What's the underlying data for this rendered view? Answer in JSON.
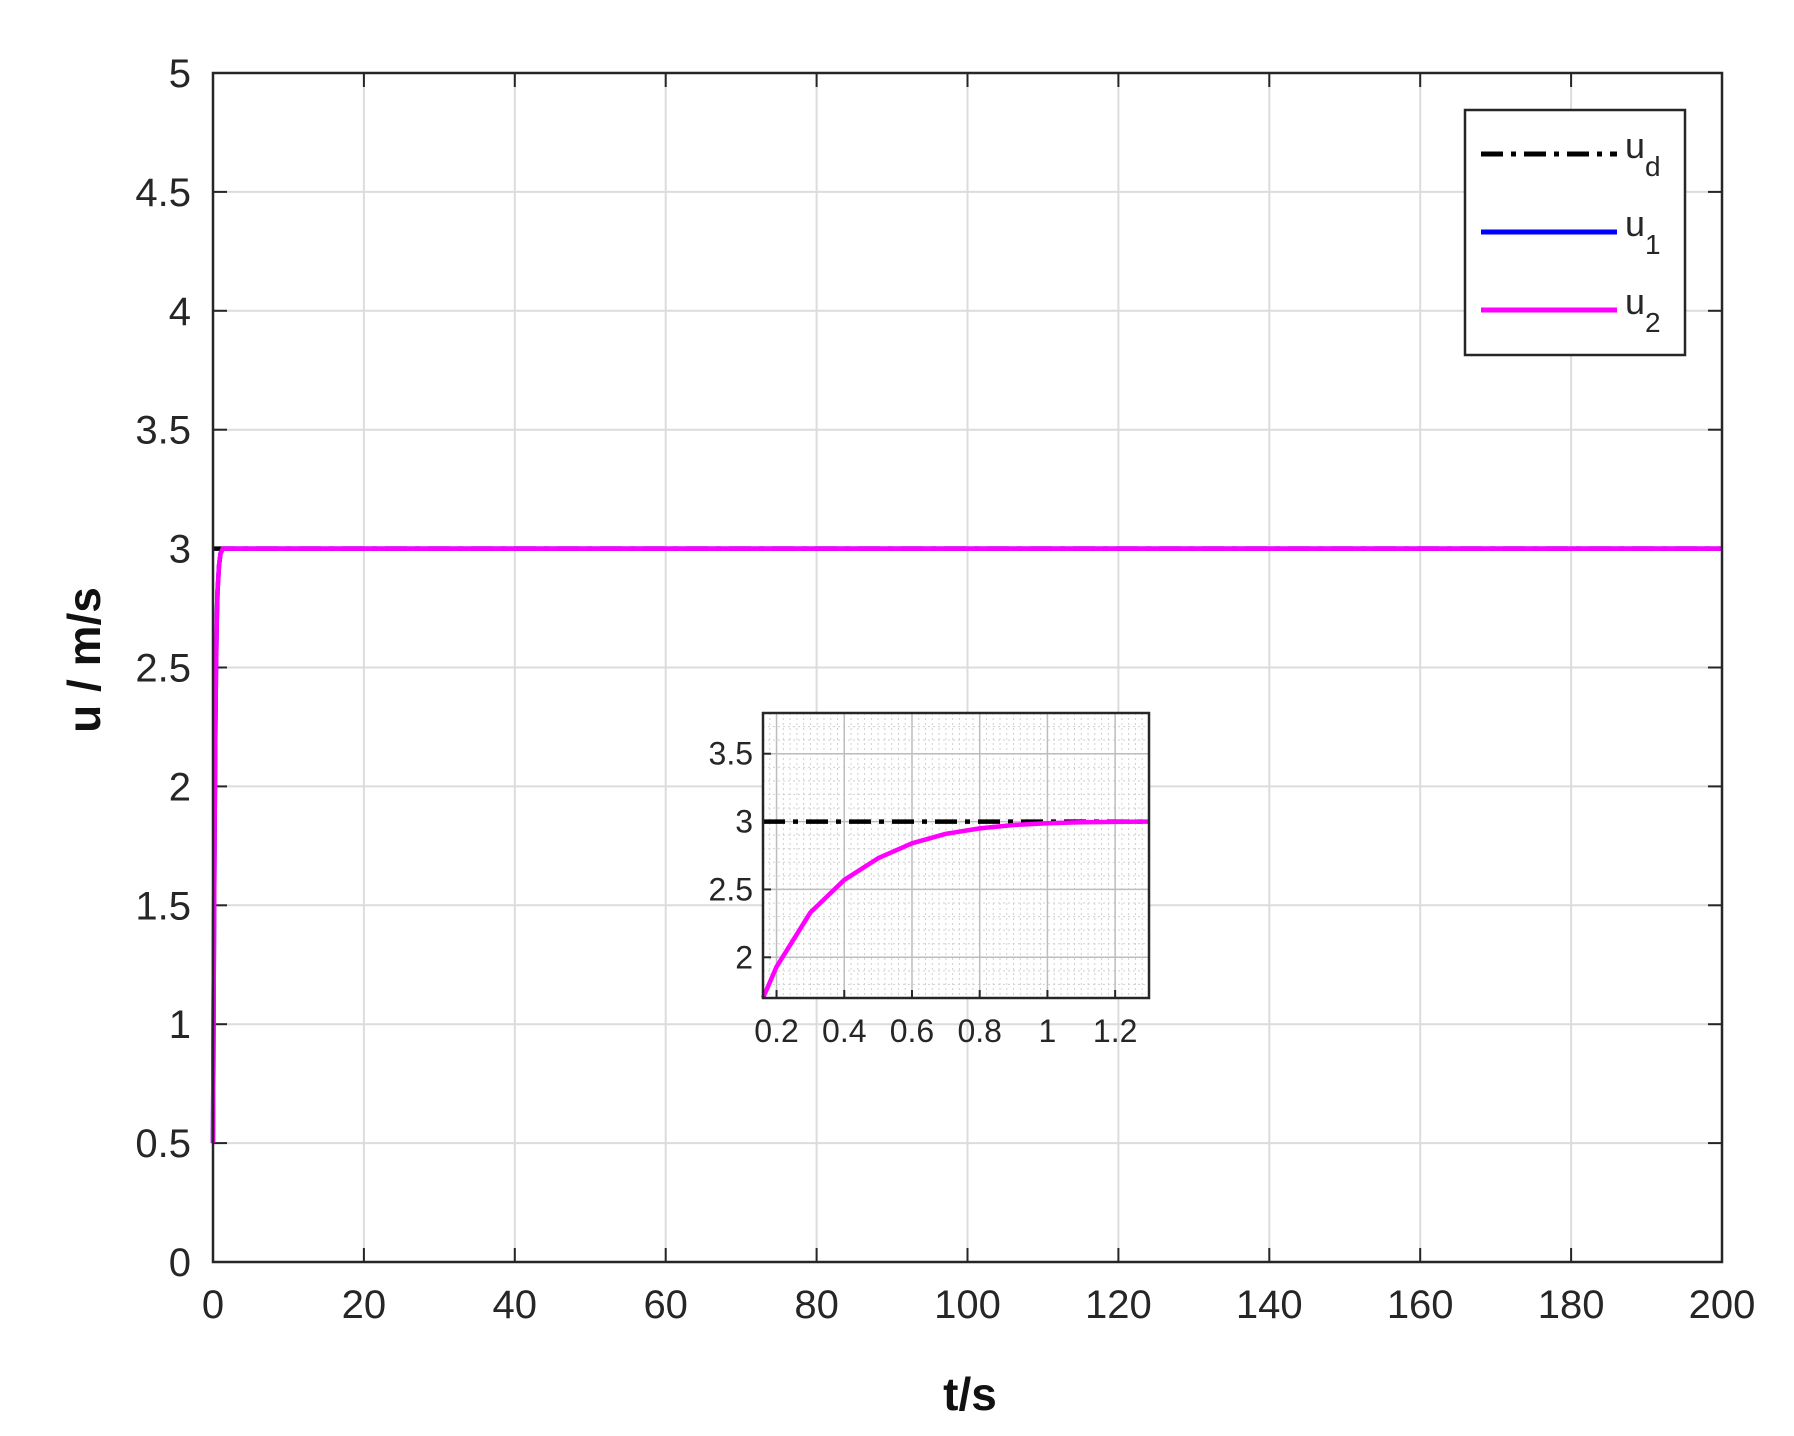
{
  "chart_data": {
    "type": "line",
    "xlabel": "t/s",
    "ylabel": "u / m/s",
    "xlim": [
      0,
      200
    ],
    "ylim": [
      0,
      5
    ],
    "xticks": [
      0,
      20,
      40,
      60,
      80,
      100,
      120,
      140,
      160,
      180,
      200
    ],
    "yticks": [
      0,
      0.5,
      1,
      1.5,
      2,
      2.5,
      3,
      3.5,
      4,
      4.5,
      5
    ],
    "xtick_labels": [
      "0",
      "20",
      "40",
      "60",
      "80",
      "100",
      "120",
      "140",
      "160",
      "180",
      "200"
    ],
    "ytick_labels": [
      "0",
      "0.5",
      "1",
      "1.5",
      "2",
      "2.5",
      "3",
      "3.5",
      "4",
      "4.5",
      "5"
    ],
    "grid": true,
    "legend_placement": "top-right",
    "legend": [
      {
        "base": "u",
        "sub": "d",
        "color": "#000000",
        "style": "dash-dot"
      },
      {
        "base": "u",
        "sub": "1",
        "color": "#0000ff",
        "style": "solid"
      },
      {
        "base": "u",
        "sub": "2",
        "color": "#ff00ff",
        "style": "solid"
      }
    ],
    "series": [
      {
        "color": "#000000",
        "style": "dash-dot",
        "x": [
          0,
          200
        ],
        "y": [
          3,
          3
        ]
      },
      {
        "color": "#0000ff",
        "style": "solid",
        "x": [
          0,
          0.1,
          0.2,
          0.3,
          0.4,
          0.5,
          0.6,
          0.8,
          1.0,
          1.3,
          2,
          200
        ],
        "y": [
          0.5,
          1.2,
          1.75,
          2.2,
          2.5,
          2.7,
          2.82,
          2.93,
          2.98,
          3.0,
          3.0,
          3.0
        ]
      },
      {
        "color": "#ff00ff",
        "style": "solid",
        "x": [
          0,
          0.1,
          0.2,
          0.3,
          0.4,
          0.5,
          0.6,
          0.8,
          1.0,
          1.3,
          2,
          200
        ],
        "y": [
          0.5,
          1.2,
          1.75,
          2.2,
          2.5,
          2.7,
          2.82,
          2.93,
          2.98,
          3.0,
          3.0,
          3.0
        ]
      }
    ],
    "inset": {
      "xlim": [
        0.16,
        1.3
      ],
      "ylim": [
        1.7,
        3.8
      ],
      "xticks": [
        0.2,
        0.4,
        0.6,
        0.8,
        1,
        1.2
      ],
      "yticks": [
        2,
        2.5,
        3,
        3.5
      ],
      "xtick_labels": [
        "0.2",
        "0.4",
        "0.6",
        "0.8",
        "1",
        "1.2"
      ],
      "ytick_labels": [
        "2",
        "2.5",
        "3",
        "3.5"
      ],
      "minor_grid": true,
      "series": [
        {
          "color": "#000000",
          "style": "dash-dot",
          "x": [
            0.16,
            1.3
          ],
          "y": [
            3,
            3
          ]
        },
        {
          "color": "#ff00ff",
          "style": "solid",
          "x": [
            0.16,
            0.2,
            0.3,
            0.4,
            0.5,
            0.6,
            0.7,
            0.8,
            0.9,
            1.0,
            1.1,
            1.2,
            1.3
          ],
          "y": [
            1.7,
            1.93,
            2.33,
            2.57,
            2.73,
            2.84,
            2.91,
            2.95,
            2.975,
            2.988,
            2.995,
            2.998,
            3.0
          ]
        }
      ]
    }
  }
}
